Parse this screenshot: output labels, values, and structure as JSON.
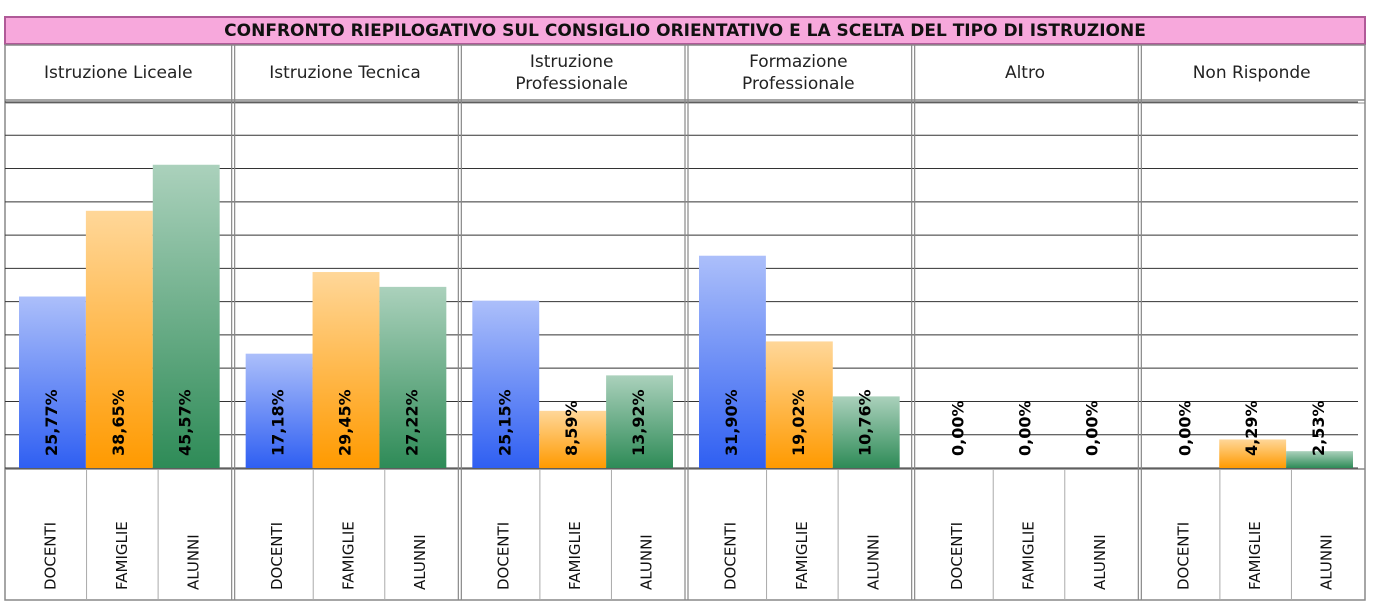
{
  "chart_data": {
    "type": "bar",
    "title": "CONFRONTO RIEPILOGATIVO SUL CONSIGLIO ORIENTATIVO E LA SCELTA DEL TIPO DI ISTRUZIONE",
    "categories": [
      "Istruzione Liceale",
      "Istruzione Tecnica",
      "Istruzione Professionale",
      "Formazione Professionale",
      "Altro",
      "Non Risponde"
    ],
    "series": [
      {
        "name": "DOCENTI",
        "color": "#2f5ff2",
        "values": [
          25.77,
          17.18,
          25.15,
          31.9,
          0,
          0
        ],
        "value_labels": [
          "25,77%",
          "17,18%",
          "25,15%",
          "31,90%",
          "0,00%",
          "0,00%"
        ]
      },
      {
        "name": "FAMIGLIE",
        "color": "#ff9a00",
        "values": [
          38.65,
          29.45,
          8.59,
          19.02,
          0,
          4.29
        ],
        "value_labels": [
          "38,65%",
          "29,45%",
          "8,59%",
          "19,02%",
          "0,00%",
          "4,29%"
        ]
      },
      {
        "name": "ALUNNI",
        "color": "#2e8b57",
        "values": [
          45.57,
          27.22,
          13.92,
          10.76,
          0,
          2.53
        ],
        "value_labels": [
          "45,57%",
          "27,22%",
          "13,92%",
          "10,76%",
          "0,00%",
          "2,53%"
        ]
      }
    ],
    "ylim": [
      0,
      55
    ],
    "yticks": [
      0,
      5,
      10,
      15,
      20,
      25,
      30,
      35,
      40,
      45,
      50,
      55
    ],
    "grid": true
  }
}
